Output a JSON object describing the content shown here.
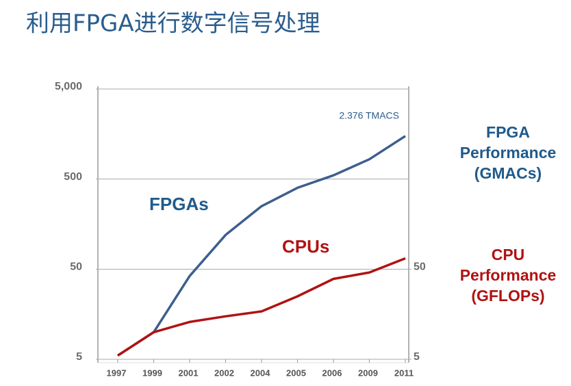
{
  "title": "利用FPGA进行数字信号处理",
  "chart_data": {
    "type": "line",
    "categories": [
      "1997",
      "1999",
      "2001",
      "2002",
      "2004",
      "2005",
      "2006",
      "2009",
      "2011"
    ],
    "series": [
      {
        "name": "FPGAs",
        "color": "#3d5e8e",
        "values": [
          5.5,
          10,
          42,
          120,
          250,
          400,
          550,
          830,
          1500
        ]
      },
      {
        "name": "CPUs",
        "color": "#b01212",
        "axis": "y2",
        "values": [
          5.5,
          10,
          13,
          15,
          17,
          25,
          39,
          46,
          66
        ]
      }
    ],
    "y_label": [
      "FPGA",
      "Performance",
      "(GMACs)"
    ],
    "y2_label": [
      "CPU",
      "Performance",
      "(GFLOPs)"
    ],
    "annotation": "2.376 TMACS",
    "log_scale": true,
    "grid": true,
    "ylim": [
      5,
      5000
    ],
    "yticks": [
      {
        "value": 5000,
        "label": "5,000"
      },
      500,
      50,
      5
    ],
    "y2lim": [
      5,
      5000
    ],
    "y2ticks": [
      50,
      5
    ]
  }
}
